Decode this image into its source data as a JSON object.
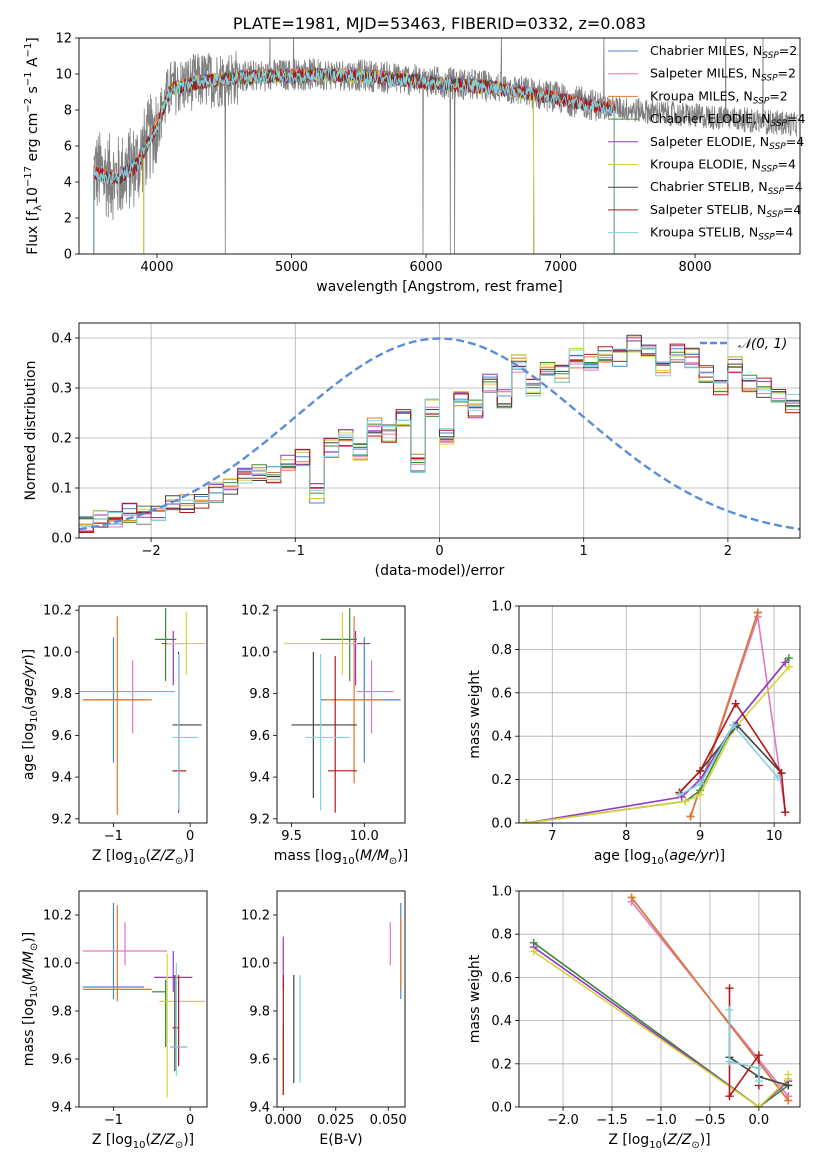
{
  "chart_data": [
    {
      "id": "spectrum",
      "type": "line",
      "title": "PLATE=1981, MJD=53463, FIBERID=0332, z=0.083",
      "xlabel": "wavelength [Angstrom, rest frame]",
      "ylabel": "Flux [f_λ 10^-17 erg cm^-2 s^-1 A^-1]",
      "xlim": [
        3420,
        8780
      ],
      "ylim": [
        0,
        12
      ],
      "xticks": [
        4000,
        5000,
        6000,
        7000,
        8000
      ],
      "yticks": [
        0,
        2,
        4,
        6,
        8,
        10,
        12
      ],
      "legend_position": "right",
      "data_color": "#808080",
      "data_range": [
        3530,
        8760
      ],
      "continuum": [
        [
          3530,
          4.6
        ],
        [
          3700,
          4.2
        ],
        [
          3850,
          5.0
        ],
        [
          4000,
          7.2
        ],
        [
          4100,
          9.2
        ],
        [
          4300,
          9.6
        ],
        [
          4700,
          9.9
        ],
        [
          5200,
          10.0
        ],
        [
          5600,
          9.9
        ],
        [
          6000,
          9.6
        ],
        [
          6500,
          9.3
        ],
        [
          6900,
          8.8
        ],
        [
          7300,
          8.2
        ],
        [
          7800,
          7.8
        ],
        [
          8300,
          7.5
        ],
        [
          8760,
          7.2
        ]
      ],
      "legend": [
        {
          "label": "Chabrier MILES, N",
          "sub": "SSP",
          "suffix": "=2",
          "color": "#4a86c6"
        },
        {
          "label": "Salpeter MILES, N",
          "sub": "SSP",
          "suffix": "=2",
          "color": "#e377c2"
        },
        {
          "label": "Kroupa MILES, N",
          "sub": "SSP",
          "suffix": "=2",
          "color": "#e1772b"
        },
        {
          "label": "Chabrier ELODIE, N",
          "sub": "SSP",
          "suffix": "=4",
          "color": "#3c8a3c"
        },
        {
          "label": "Salpeter ELODIE, N",
          "sub": "SSP",
          "suffix": "=4",
          "color": "#9b35c4"
        },
        {
          "label": "Kroupa ELODIE, N",
          "sub": "SSP",
          "suffix": "=4",
          "color": "#d4d43a"
        },
        {
          "label": "Chabrier STELIB, N",
          "sub": "SSP",
          "suffix": "=4",
          "color": "#444444"
        },
        {
          "label": "Salpeter STELIB, N",
          "sub": "SSP",
          "suffix": "=4",
          "color": "#b01818"
        },
        {
          "label": "Kroupa STELIB, N",
          "sub": "SSP",
          "suffix": "=4",
          "color": "#7fd3e0"
        }
      ],
      "model_ranges": [
        [
          3530,
          7400
        ],
        [
          3530,
          7400
        ],
        [
          3530,
          7400
        ],
        [
          3900,
          6800
        ],
        [
          3900,
          6800
        ],
        [
          3900,
          6800
        ],
        [
          3530,
          7400
        ],
        [
          3530,
          7400
        ],
        [
          3530,
          7400
        ]
      ]
    },
    {
      "id": "residuals",
      "type": "histogram",
      "xlabel": "(data-model)/error",
      "ylabel": "Normed distribution",
      "xlim": [
        -2.5,
        2.5
      ],
      "ylim": [
        0,
        0.43
      ],
      "xticks": [
        -2,
        -1,
        0,
        1,
        2
      ],
      "yticks": [
        0.0,
        0.1,
        0.2,
        0.3,
        0.4
      ],
      "grid": true,
      "bin_width": 0.1,
      "bin_start": -2.5,
      "base_counts": [
        0.03,
        0.035,
        0.038,
        0.05,
        0.045,
        0.055,
        0.065,
        0.07,
        0.075,
        0.09,
        0.1,
        0.12,
        0.13,
        0.125,
        0.15,
        0.16,
        0.09,
        0.18,
        0.2,
        0.17,
        0.22,
        0.21,
        0.24,
        0.15,
        0.26,
        0.2,
        0.28,
        0.26,
        0.31,
        0.28,
        0.35,
        0.3,
        0.34,
        0.33,
        0.36,
        0.35,
        0.37,
        0.36,
        0.39,
        0.38,
        0.34,
        0.37,
        0.36,
        0.33,
        0.3,
        0.35,
        0.31,
        0.3,
        0.28,
        0.27,
        0.26,
        0.24,
        0.22,
        0.23,
        0.19,
        0.17,
        0.15,
        0.16,
        0.13,
        0.14,
        0.12,
        0.11,
        0.1,
        0.09,
        0.08,
        0.07,
        0.06,
        0.05,
        0.04,
        0.035,
        0.03,
        0.025,
        0.02,
        0.02,
        0.018
      ],
      "legend": "𝒩(0, 1)",
      "normal_color": "#5b8ed6"
    },
    {
      "id": "age_vs_Z",
      "type": "scatter",
      "xlabel": "Z [log10(Z/Z☉)]",
      "ylabel": "age [log10(age/yr)]",
      "xlim": [
        -1.45,
        0.22
      ],
      "ylim": [
        9.18,
        10.22
      ],
      "xticks": [
        -1,
        0
      ],
      "yticks": [
        9.2,
        9.4,
        9.6,
        9.8,
        10.0,
        10.2
      ],
      "errorbars": [
        {
          "color": "#4a86c6",
          "x": -1.0,
          "y": 9.77,
          "xerr": [
            0.4,
            0.4
          ],
          "yerr": [
            0.3,
            0.3
          ]
        },
        {
          "color": "#e377c2",
          "x": -0.75,
          "y": 9.81,
          "xerr": [
            0.7,
            0.55
          ],
          "yerr": [
            0.2,
            0.15
          ]
        },
        {
          "color": "#e1772b",
          "x": -0.95,
          "y": 9.77,
          "xerr": [
            0.45,
            0.45
          ],
          "yerr": [
            0.55,
            0.4
          ]
        },
        {
          "color": "#3c8a3c",
          "x": -0.32,
          "y": 10.06,
          "xerr": [
            0.14,
            0.14
          ],
          "yerr": [
            0.2,
            0.15
          ]
        },
        {
          "color": "#9b35c4",
          "x": -0.22,
          "y": 10.04,
          "xerr": [
            0.15,
            0.15
          ],
          "yerr": [
            0.2,
            0.06
          ]
        },
        {
          "color": "#d4d43a",
          "x": -0.05,
          "y": 10.04,
          "xerr": [
            0.25,
            0.25
          ],
          "yerr": [
            0.15,
            0.15
          ]
        },
        {
          "color": "#444444",
          "x": -0.15,
          "y": 9.65,
          "xerr": [
            0.08,
            0.3
          ],
          "yerr": [
            0.35,
            0.35
          ]
        },
        {
          "color": "#b01818",
          "x": -0.15,
          "y": 9.43,
          "xerr": [
            0.08,
            0.1
          ],
          "yerr": [
            0.2,
            0.55
          ]
        },
        {
          "color": "#7fd3e0",
          "x": -0.15,
          "y": 9.59,
          "xerr": [
            0.08,
            0.25
          ],
          "yerr": [
            0.35,
            0.4
          ]
        }
      ]
    },
    {
      "id": "age_vs_mass",
      "type": "scatter",
      "xlabel": "mass [log10(M/M☉)]",
      "ylabel": "",
      "xlim": [
        9.4,
        10.28
      ],
      "ylim": [
        9.18,
        10.22
      ],
      "xticks": [
        9.5,
        10.0
      ],
      "yticks": [
        9.2,
        9.4,
        9.6,
        9.8,
        10.0,
        10.2
      ],
      "errorbars": [
        {
          "color": "#4a86c6",
          "x": 10.0,
          "y": 9.77,
          "xerr": [
            0.3,
            0.25
          ],
          "yerr": [
            0.3,
            0.3
          ]
        },
        {
          "color": "#e377c2",
          "x": 10.05,
          "y": 9.81,
          "xerr": [
            0.1,
            0.15
          ],
          "yerr": [
            0.2,
            0.15
          ]
        },
        {
          "color": "#e1772b",
          "x": 9.93,
          "y": 9.77,
          "xerr": [
            0.2,
            0.2
          ],
          "yerr": [
            0.4,
            0.4
          ]
        },
        {
          "color": "#3c8a3c",
          "x": 9.9,
          "y": 10.06,
          "xerr": [
            0.2,
            0.05
          ],
          "yerr": [
            0.2,
            0.15
          ]
        },
        {
          "color": "#9b35c4",
          "x": 9.94,
          "y": 10.04,
          "xerr": [
            0.05,
            0.1
          ],
          "yerr": [
            0.2,
            0.06
          ]
        },
        {
          "color": "#d4d43a",
          "x": 9.85,
          "y": 10.04,
          "xerr": [
            0.4,
            0.1
          ],
          "yerr": [
            0.15,
            0.15
          ]
        },
        {
          "color": "#444444",
          "x": 9.65,
          "y": 9.65,
          "xerr": [
            0.15,
            0.3
          ],
          "yerr": [
            0.35,
            0.35
          ]
        },
        {
          "color": "#b01818",
          "x": 9.8,
          "y": 9.43,
          "xerr": [
            0.05,
            0.15
          ],
          "yerr": [
            0.2,
            0.55
          ]
        },
        {
          "color": "#7fd3e0",
          "x": 9.7,
          "y": 9.59,
          "xerr": [
            0.1,
            0.2
          ],
          "yerr": [
            0.35,
            0.4
          ]
        }
      ]
    },
    {
      "id": "mass_weight_vs_age",
      "type": "line",
      "xlabel": "age [log10(age/yr)]",
      "ylabel": "mass weight",
      "xlim": [
        6.55,
        10.35
      ],
      "ylim": [
        0,
        1.0
      ],
      "xticks": [
        7,
        8,
        9,
        10
      ],
      "yticks": [
        0.0,
        0.2,
        0.4,
        0.6,
        0.8,
        1.0
      ],
      "grid": true,
      "series": [
        {
          "color": "#4a86c6",
          "x": [
            8.87,
            9.78
          ],
          "y": [
            0.03,
            0.97
          ]
        },
        {
          "color": "#e377c2",
          "x": [
            8.87,
            9.78,
            10.15
          ],
          "y": [
            0.03,
            0.95,
            0.05
          ]
        },
        {
          "color": "#e1772b",
          "x": [
            8.87,
            9.78
          ],
          "y": [
            0.03,
            0.97
          ]
        },
        {
          "color": "#3c8a3c",
          "x": [
            6.65,
            8.8,
            9.0,
            9.45,
            10.2
          ],
          "y": [
            0.0,
            0.1,
            0.15,
            0.45,
            0.76
          ]
        },
        {
          "color": "#9b35c4",
          "x": [
            6.65,
            8.75,
            9.0,
            9.45,
            10.15
          ],
          "y": [
            0.0,
            0.12,
            0.2,
            0.45,
            0.74
          ]
        },
        {
          "color": "#d4d43a",
          "x": [
            6.65,
            8.8,
            9.0,
            9.45,
            10.2
          ],
          "y": [
            0.0,
            0.1,
            0.13,
            0.43,
            0.72
          ]
        },
        {
          "color": "#444444",
          "x": [
            8.72,
            9.0,
            9.5,
            10.1
          ],
          "y": [
            0.14,
            0.24,
            0.45,
            0.23
          ]
        },
        {
          "color": "#b01818",
          "x": [
            8.72,
            9.0,
            9.48,
            10.1,
            10.15
          ],
          "y": [
            0.14,
            0.24,
            0.55,
            0.23,
            0.05
          ]
        },
        {
          "color": "#7fd3e0",
          "x": [
            8.72,
            9.0,
            9.45,
            10.05
          ],
          "y": [
            0.13,
            0.18,
            0.45,
            0.21
          ]
        }
      ]
    },
    {
      "id": "mass_vs_Z",
      "type": "scatter",
      "xlabel": "Z [log10(Z/Z☉)]",
      "ylabel": "mass [log10(M/M☉)]",
      "xlim": [
        -1.45,
        0.22
      ],
      "ylim": [
        9.4,
        10.3
      ],
      "xticks": [
        -1,
        0
      ],
      "yticks": [
        9.4,
        9.6,
        9.8,
        10.0,
        10.2
      ],
      "errorbars": [
        {
          "color": "#4a86c6",
          "x": -1.0,
          "y": 9.9,
          "xerr": [
            0.4,
            0.4
          ],
          "yerr": [
            0.05,
            0.35
          ]
        },
        {
          "color": "#e377c2",
          "x": -0.85,
          "y": 10.05,
          "xerr": [
            0.55,
            0.55
          ],
          "yerr": [
            0.06,
            0.12
          ]
        },
        {
          "color": "#e1772b",
          "x": -0.95,
          "y": 9.89,
          "xerr": [
            0.45,
            0.45
          ],
          "yerr": [
            0.05,
            0.35
          ]
        },
        {
          "color": "#3c8a3c",
          "x": -0.32,
          "y": 9.88,
          "xerr": [
            0.18,
            0.0
          ],
          "yerr": [
            0.23,
            0.05
          ]
        },
        {
          "color": "#9b35c4",
          "x": -0.22,
          "y": 9.94,
          "xerr": [
            0.25,
            0.25
          ],
          "yerr": [
            0.06,
            0.11
          ]
        },
        {
          "color": "#d4d43a",
          "x": -0.3,
          "y": 9.84,
          "xerr": [
            0.1,
            0.5
          ],
          "yerr": [
            0.4,
            0.2
          ]
        },
        {
          "color": "#444444",
          "x": -0.2,
          "y": 9.65,
          "xerr": [
            0.05,
            0.15
          ],
          "yerr": [
            0.1,
            0.3
          ]
        },
        {
          "color": "#b01818",
          "x": -0.15,
          "y": 9.73,
          "xerr": [
            0.08,
            0.0
          ],
          "yerr": [
            0.16,
            0.22
          ]
        },
        {
          "color": "#7fd3e0",
          "x": -0.18,
          "y": 9.65,
          "xerr": [
            0.08,
            0.15
          ],
          "yerr": [
            0.12,
            0.35
          ]
        }
      ]
    },
    {
      "id": "mass_vs_ebv",
      "type": "scatter",
      "xlabel": "E(B-V)",
      "ylabel": "",
      "xlim": [
        -0.003,
        0.058
      ],
      "ylim": [
        9.4,
        10.3
      ],
      "xticks": [
        0.0,
        0.025,
        0.05
      ],
      "xtick_labels": [
        "0.000",
        "0.025",
        "0.050"
      ],
      "yticks": [
        9.4,
        9.6,
        9.8,
        10.0,
        10.2
      ],
      "errorbars": [
        {
          "color": "#4a86c6",
          "x": 0.056,
          "y": 9.9,
          "xerr": [
            0,
            0
          ],
          "yerr": [
            0.05,
            0.35
          ]
        },
        {
          "color": "#e377c2",
          "x": 0.051,
          "y": 10.05,
          "xerr": [
            0,
            0
          ],
          "yerr": [
            0.06,
            0.12
          ]
        },
        {
          "color": "#e1772b",
          "x": 0.056,
          "y": 9.89,
          "xerr": [
            0,
            0
          ],
          "yerr": [
            0.0,
            0.3
          ]
        },
        {
          "color": "#3c8a3c",
          "x": 0.0,
          "y": 9.7,
          "xerr": [
            0,
            0
          ],
          "yerr": [
            0.2,
            0.05
          ]
        },
        {
          "color": "#9b35c4",
          "x": 0.0,
          "y": 9.95,
          "xerr": [
            0,
            0
          ],
          "yerr": [
            0.06,
            0.16
          ]
        },
        {
          "color": "#d4d43a",
          "x": 0.0,
          "y": 9.55,
          "xerr": [
            0,
            0
          ],
          "yerr": [
            0.1,
            0.15
          ]
        },
        {
          "color": "#444444",
          "x": 0.005,
          "y": 9.7,
          "xerr": [
            0,
            0
          ],
          "yerr": [
            0.2,
            0.25
          ]
        },
        {
          "color": "#b01818",
          "x": 0.0,
          "y": 9.75,
          "xerr": [
            0,
            0
          ],
          "yerr": [
            0.3,
            0.2
          ]
        },
        {
          "color": "#7fd3e0",
          "x": 0.008,
          "y": 9.75,
          "xerr": [
            0,
            0
          ],
          "yerr": [
            0.25,
            0.2
          ]
        }
      ]
    },
    {
      "id": "mass_weight_vs_Z",
      "type": "line",
      "xlabel": "Z [log10(Z/Z☉)]",
      "ylabel": "mass weight",
      "xlim": [
        -2.45,
        0.42
      ],
      "ylim": [
        0,
        1.0
      ],
      "xticks": [
        -2.0,
        -1.5,
        -1.0,
        -0.5,
        0.0
      ],
      "xtick_labels": [
        "−2.0",
        "−1.5",
        "−1.0",
        "−0.5",
        "0.0"
      ],
      "yticks": [
        0.0,
        0.2,
        0.4,
        0.6,
        0.8,
        1.0
      ],
      "grid": true,
      "series": [
        {
          "color": "#4a86c6",
          "x": [
            -1.3,
            0.3
          ],
          "y": [
            0.97,
            0.03
          ]
        },
        {
          "color": "#e377c2",
          "x": [
            -1.3,
            0.3
          ],
          "y": [
            0.95,
            0.05
          ]
        },
        {
          "color": "#e1772b",
          "x": [
            -1.3,
            0.3
          ],
          "y": [
            0.97,
            0.03
          ]
        },
        {
          "color": "#3c8a3c",
          "x": [
            -2.3,
            0.0,
            0.3
          ],
          "y": [
            0.76,
            0.0,
            0.1
          ]
        },
        {
          "color": "#9b35c4",
          "x": [
            -2.3,
            0.0,
            0.3
          ],
          "y": [
            0.74,
            0.0,
            0.12
          ]
        },
        {
          "color": "#d4d43a",
          "x": [
            -2.3,
            0.0,
            0.3,
            0.3
          ],
          "y": [
            0.72,
            0.0,
            0.13,
            0.15
          ]
        },
        {
          "color": "#444444",
          "x": [
            -0.3,
            0.0,
            0.3
          ],
          "y": [
            0.23,
            0.14,
            0.1
          ]
        },
        {
          "color": "#b01818",
          "x": [
            -0.3,
            -0.3,
            0.0,
            0.0
          ],
          "y": [
            0.55,
            0.05,
            0.24,
            0.1
          ]
        },
        {
          "color": "#7fd3e0",
          "x": [
            -0.3,
            -0.3,
            0.0,
            0.0
          ],
          "y": [
            0.45,
            0.21,
            0.18,
            0.12
          ]
        }
      ]
    }
  ]
}
